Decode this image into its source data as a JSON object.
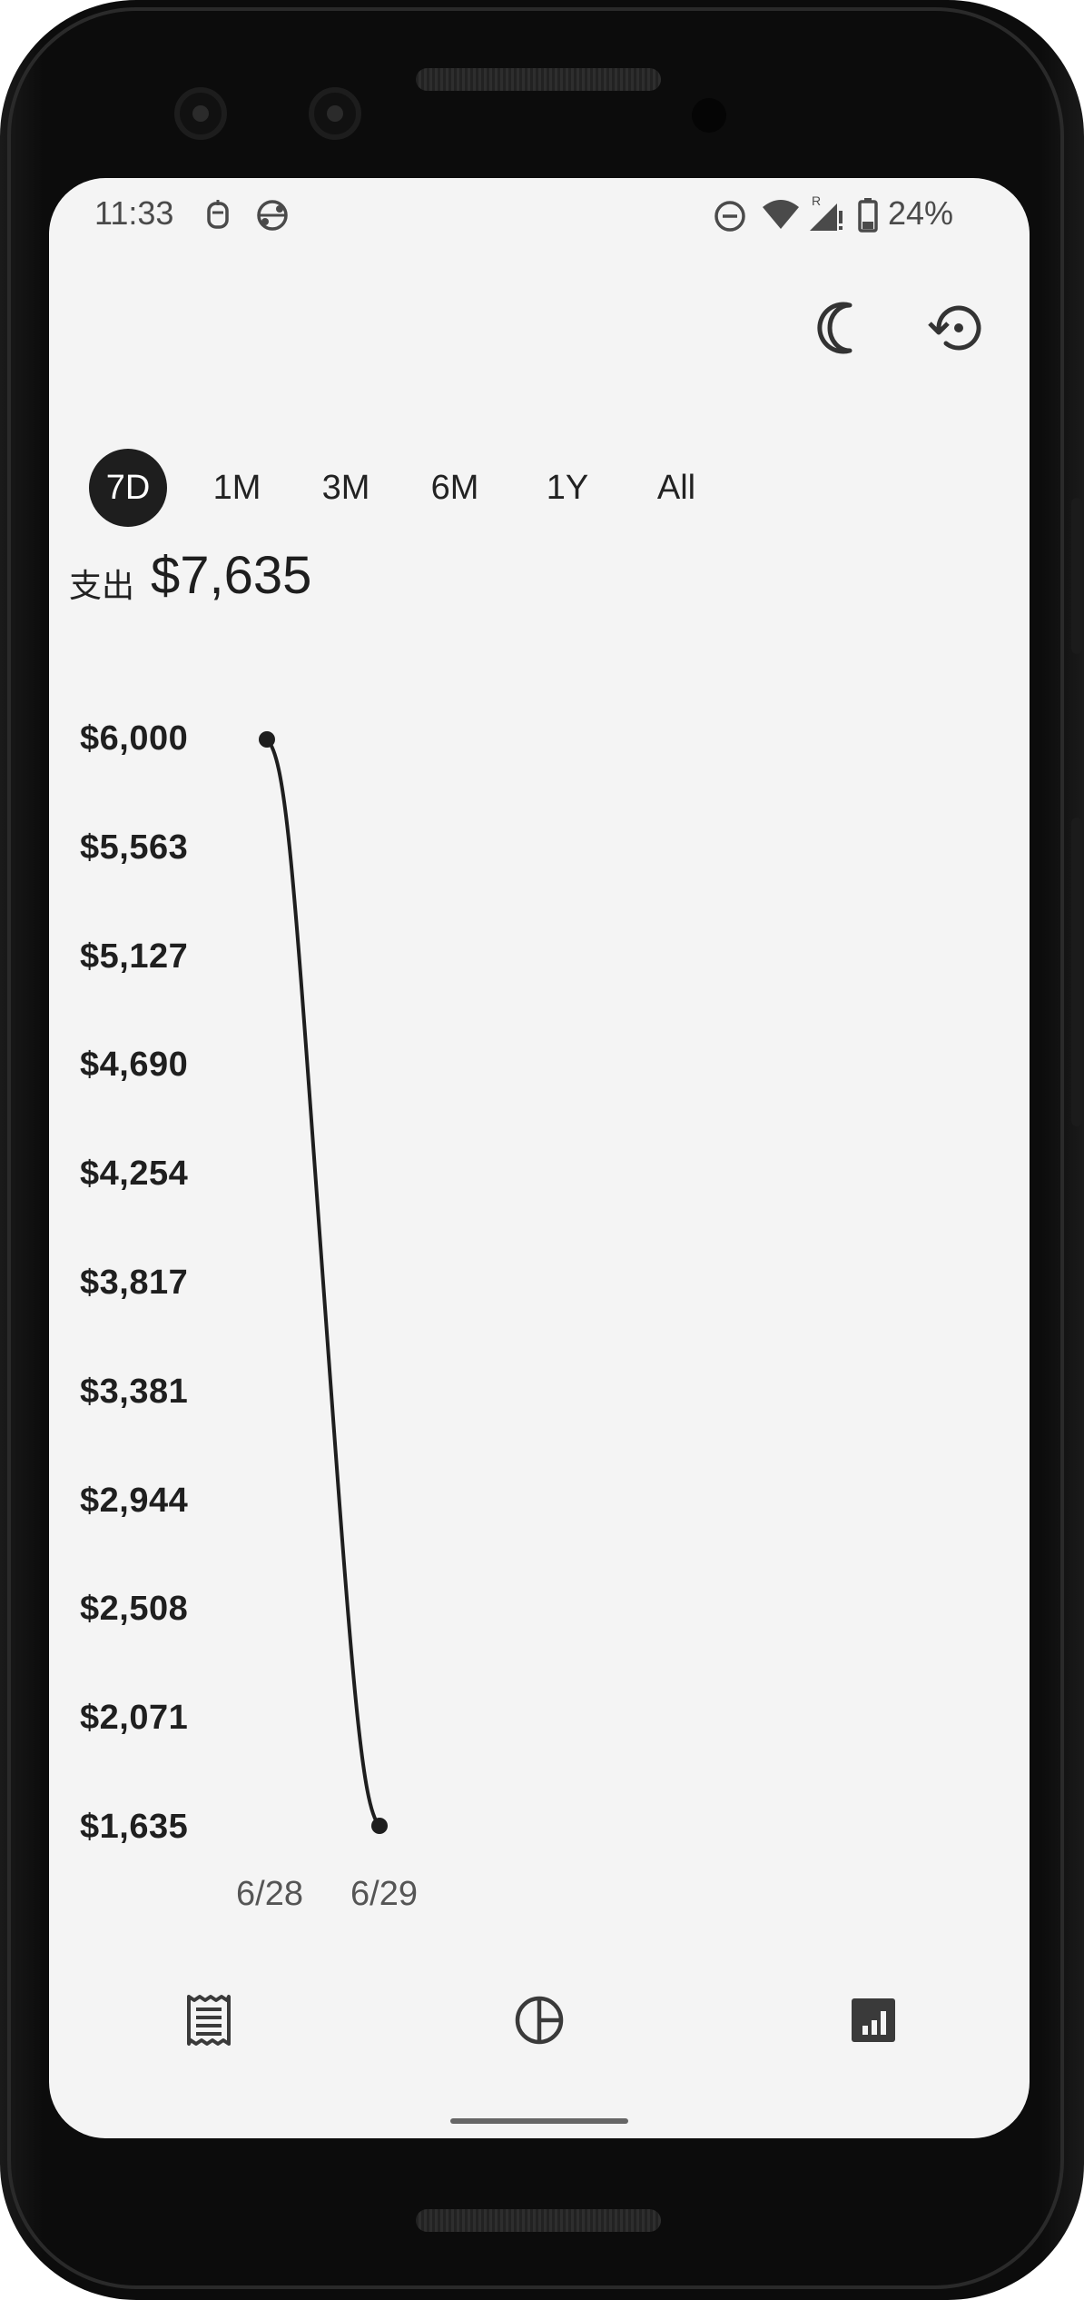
{
  "status_bar": {
    "time": "11:33",
    "battery_percent": "24%",
    "icons": [
      "notification-icon",
      "vpn-icon",
      "do-not-disturb-icon",
      "wifi-icon",
      "signal-icon",
      "battery-icon"
    ]
  },
  "toolbar": {
    "icons": [
      "moon-icon",
      "history-icon"
    ]
  },
  "range_tabs": [
    {
      "label": "7D",
      "active": true
    },
    {
      "label": "1M",
      "active": false
    },
    {
      "label": "3M",
      "active": false
    },
    {
      "label": "6M",
      "active": false
    },
    {
      "label": "1Y",
      "active": false
    },
    {
      "label": "All",
      "active": false
    }
  ],
  "summary": {
    "label": "支出",
    "amount": "$7,635"
  },
  "chart_data": {
    "type": "line",
    "x": [
      "6/28",
      "6/29"
    ],
    "series": [
      {
        "values": [
          6000,
          1635
        ]
      }
    ],
    "y_ticks": [
      "$6,000",
      "$5,563",
      "$5,127",
      "$4,690",
      "$4,254",
      "$3,817",
      "$3,381",
      "$2,944",
      "$2,508",
      "$2,071",
      "$1,635"
    ],
    "ylim": [
      1635,
      6000
    ],
    "grid": false
  },
  "bottom_nav": {
    "items": [
      "receipt-icon",
      "pie-chart-icon",
      "bar-chart-icon"
    ]
  },
  "colors": {
    "background": "#f4f4f4",
    "accent": "#1e1e1e",
    "text": "#222222"
  }
}
